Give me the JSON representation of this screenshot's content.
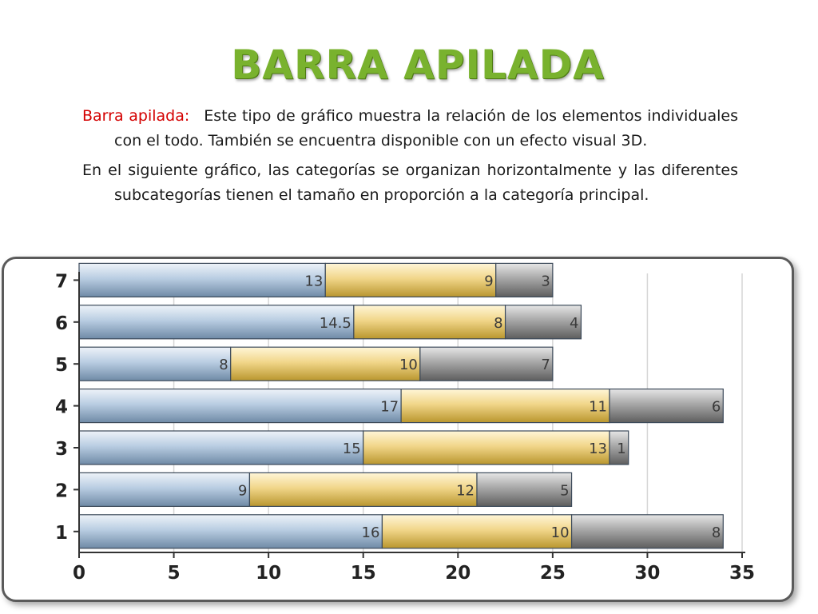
{
  "title": "BARRA APILADA",
  "paragraphs": {
    "p1_lead": "Barra apilada:",
    "p1_text": "Este tipo de gráfico muestra la relación de los elementos individuales con el todo. También se encuentra disponible con un efecto visual 3D.",
    "p2_text": "En el siguiente gráfico, las categorías se organizan horizontalmente y las diferentes subcategorías tienen el tamaño en proporción a la categoría principal."
  },
  "colors": {
    "title": "#79b22e",
    "lead": "#d40000",
    "series": [
      "#a9bfd6",
      "#efd27f",
      "#9a9a9a"
    ]
  },
  "chart_data": {
    "type": "bar",
    "orientation": "horizontal",
    "stacked": true,
    "categories": [
      "1",
      "2",
      "3",
      "4",
      "5",
      "6",
      "7"
    ],
    "series": [
      {
        "values": [
          16,
          9,
          15,
          17,
          8,
          14.5,
          13
        ]
      },
      {
        "values": [
          10,
          12,
          13,
          11,
          10,
          8,
          9
        ]
      },
      {
        "values": [
          8,
          5,
          1,
          6,
          7,
          4,
          3
        ]
      }
    ],
    "xlim": [
      0,
      35
    ],
    "xticks": [
      "0",
      "5",
      "10",
      "15",
      "20",
      "25",
      "30",
      "35"
    ],
    "grid": true,
    "data_labels": true
  }
}
